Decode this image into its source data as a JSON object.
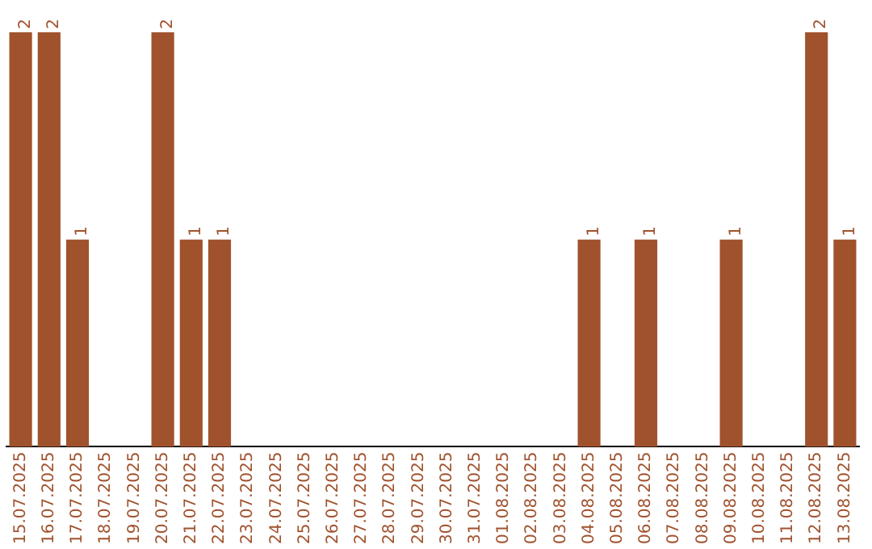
{
  "chart_data": {
    "type": "bar",
    "categories": [
      "15.07.2025",
      "16.07.2025",
      "17.07.2025",
      "18.07.2025",
      "19.07.2025",
      "20.07.2025",
      "21.07.2025",
      "22.07.2025",
      "23.07.2025",
      "24.07.2025",
      "25.07.2025",
      "26.07.2025",
      "27.07.2025",
      "28.07.2025",
      "29.07.2025",
      "30.07.2025",
      "31.07.2025",
      "01.08.2025",
      "02.08.2025",
      "03.08.2025",
      "04.08.2025",
      "05.08.2025",
      "06.08.2025",
      "07.08.2025",
      "08.08.2025",
      "09.08.2025",
      "10.08.2025",
      "11.08.2025",
      "12.08.2025",
      "13.08.2025"
    ],
    "values": [
      2,
      2,
      1,
      0,
      0,
      2,
      1,
      1,
      0,
      0,
      0,
      0,
      0,
      0,
      0,
      0,
      0,
      0,
      0,
      0,
      1,
      0,
      1,
      0,
      0,
      1,
      0,
      0,
      2,
      1
    ],
    "value_labels": [
      "2",
      "2",
      "1",
      null,
      null,
      "2",
      "1",
      "1",
      null,
      null,
      null,
      null,
      null,
      null,
      null,
      null,
      null,
      null,
      null,
      null,
      "1",
      null,
      "1",
      null,
      null,
      "1",
      null,
      null,
      "2",
      "1"
    ],
    "color": "#a0522d",
    "grid": false,
    "tick_labels": "x"
  }
}
